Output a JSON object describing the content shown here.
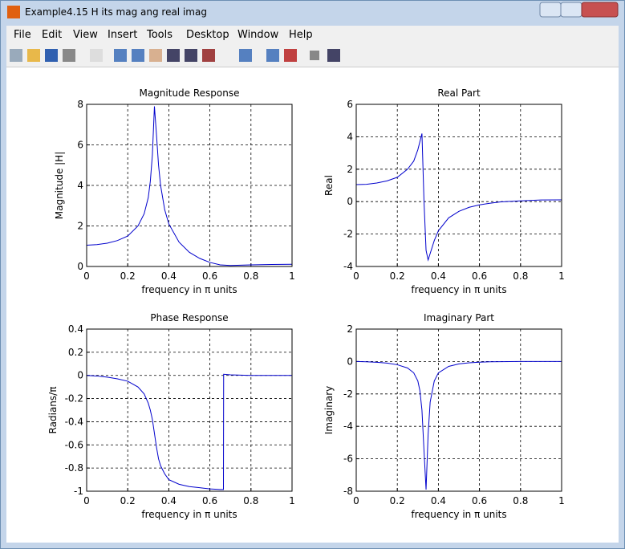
{
  "window": {
    "title": "Example4.15 H its mag ang real imag"
  },
  "menu": [
    "File",
    "Edit",
    "View",
    "Insert",
    "Tools",
    "Desktop",
    "Window",
    "Help"
  ],
  "chart_data": [
    {
      "type": "line",
      "title": "Magnitude Response",
      "x_label": "frequency in π units",
      "y_label": "Magnitude  |H|",
      "x": [
        0,
        0.05,
        0.1,
        0.15,
        0.2,
        0.25,
        0.28,
        0.3,
        0.31,
        0.32,
        0.33,
        0.34,
        0.35,
        0.36,
        0.38,
        0.4,
        0.45,
        0.5,
        0.55,
        0.6,
        0.65,
        0.7,
        0.8,
        0.9,
        1
      ],
      "values": [
        1.05,
        1.08,
        1.15,
        1.28,
        1.5,
        2.0,
        2.6,
        3.4,
        4.2,
        5.5,
        7.9,
        6.5,
        5.0,
        4.0,
        2.8,
        2.1,
        1.2,
        0.7,
        0.4,
        0.2,
        0.08,
        0.05,
        0.08,
        0.1,
        0.11
      ],
      "color": "#0000cc",
      "xlim": [
        0,
        1
      ],
      "ylim": [
        0,
        8
      ],
      "xticks": [
        0,
        0.2,
        0.4,
        0.6,
        0.8,
        1
      ],
      "yticks": [
        0,
        2,
        4,
        6,
        8
      ],
      "grid": true
    },
    {
      "type": "line",
      "title": "Real Part",
      "x_label": "frequency in π units",
      "y_label": "Real",
      "x": [
        0,
        0.05,
        0.1,
        0.15,
        0.2,
        0.25,
        0.28,
        0.3,
        0.31,
        0.32,
        0.33,
        0.34,
        0.35,
        0.36,
        0.38,
        0.4,
        0.45,
        0.5,
        0.55,
        0.6,
        0.65,
        0.7,
        0.8,
        0.9,
        1
      ],
      "values": [
        1.05,
        1.07,
        1.15,
        1.28,
        1.5,
        2.0,
        2.5,
        3.2,
        3.7,
        4.2,
        0,
        -3.0,
        -3.6,
        -3.2,
        -2.4,
        -1.8,
        -1.0,
        -0.6,
        -0.35,
        -0.2,
        -0.1,
        -0.02,
        0.05,
        0.1,
        0.11
      ],
      "color": "#0000cc",
      "xlim": [
        0,
        1
      ],
      "ylim": [
        -4,
        6
      ],
      "xticks": [
        0,
        0.2,
        0.4,
        0.6,
        0.8,
        1
      ],
      "yticks": [
        -4,
        -2,
        0,
        2,
        4,
        6
      ],
      "grid": true
    },
    {
      "type": "line",
      "title": "Phase Response",
      "x_label": "frequency in π units",
      "y_label": "Radians/π",
      "x": [
        0,
        0.05,
        0.1,
        0.15,
        0.2,
        0.25,
        0.28,
        0.3,
        0.31,
        0.32,
        0.33,
        0.34,
        0.35,
        0.36,
        0.38,
        0.4,
        0.45,
        0.5,
        0.55,
        0.6,
        0.65,
        0.666,
        0.667,
        0.7,
        0.8,
        0.9,
        1
      ],
      "values": [
        0,
        -0.005,
        -0.015,
        -0.03,
        -0.05,
        -0.1,
        -0.16,
        -0.24,
        -0.3,
        -0.38,
        -0.5,
        -0.62,
        -0.72,
        -0.78,
        -0.85,
        -0.9,
        -0.94,
        -0.96,
        -0.97,
        -0.98,
        -0.985,
        -0.985,
        0.01,
        0.005,
        0,
        0,
        0
      ],
      "color": "#0000cc",
      "xlim": [
        0,
        1
      ],
      "ylim": [
        -1,
        0.4
      ],
      "xticks": [
        0,
        0.2,
        0.4,
        0.6,
        0.8,
        1
      ],
      "yticks": [
        -1,
        -0.8,
        -0.6,
        -0.4,
        -0.2,
        0,
        0.2,
        0.4
      ],
      "grid": true
    },
    {
      "type": "line",
      "title": "Imaginary Part",
      "x_label": "frequency in π units",
      "y_label": "Imaginary",
      "x": [
        0,
        0.05,
        0.1,
        0.15,
        0.2,
        0.25,
        0.28,
        0.3,
        0.31,
        0.32,
        0.33,
        0.34,
        0.35,
        0.36,
        0.38,
        0.4,
        0.45,
        0.5,
        0.55,
        0.6,
        0.65,
        0.7,
        0.8,
        0.9,
        1
      ],
      "values": [
        0,
        -0.02,
        -0.05,
        -0.1,
        -0.2,
        -0.4,
        -0.7,
        -1.2,
        -1.8,
        -3,
        -5.5,
        -7.9,
        -4.5,
        -2.5,
        -1.2,
        -0.7,
        -0.3,
        -0.15,
        -0.08,
        -0.04,
        -0.02,
        -0.01,
        0,
        0,
        0
      ],
      "color": "#0000cc",
      "xlim": [
        0,
        1
      ],
      "ylim": [
        -8,
        2
      ],
      "xticks": [
        0,
        0.2,
        0.4,
        0.6,
        0.8,
        1
      ],
      "yticks": [
        -8,
        -6,
        -4,
        -2,
        0,
        2
      ],
      "grid": true
    }
  ]
}
